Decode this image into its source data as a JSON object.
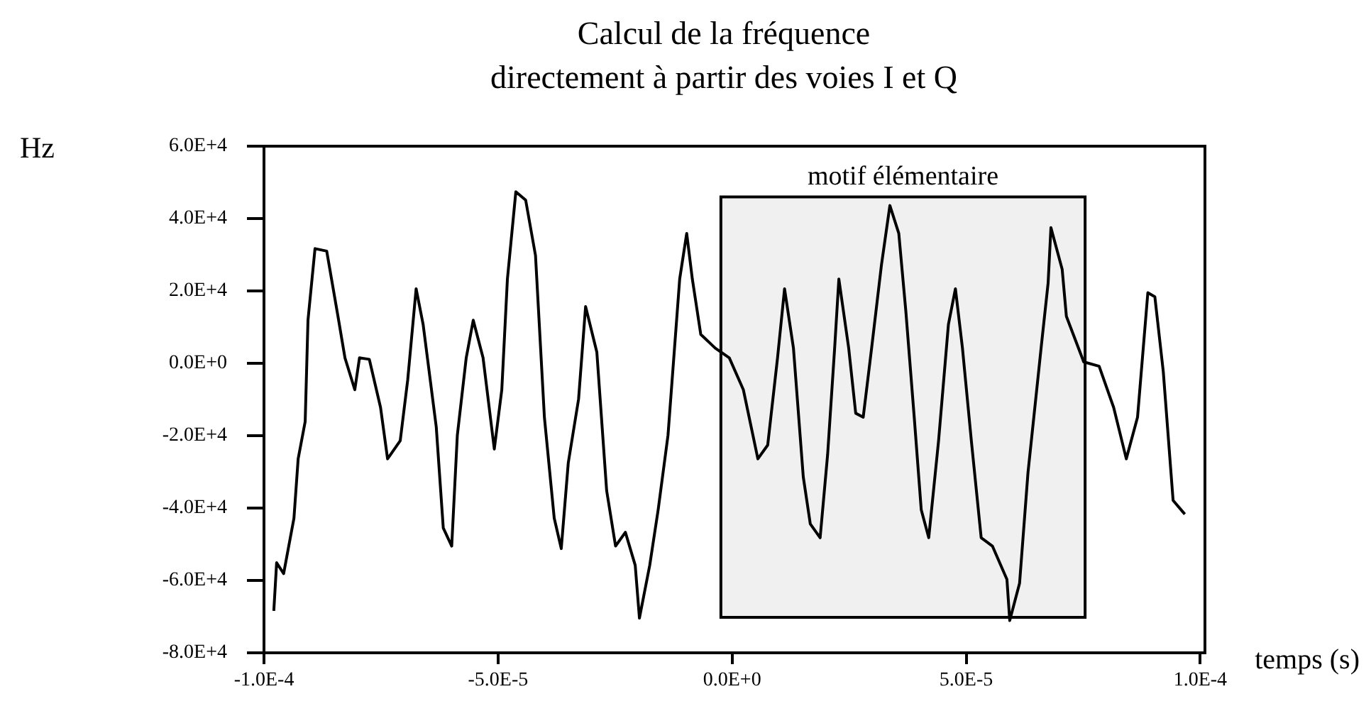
{
  "chart_data": {
    "type": "line",
    "title": "Calcul de la fréquence\ndirectement  à partir des voies I et Q",
    "xlabel": "temps (s)",
    "ylabel": "Hz",
    "xlim": [
      -0.0001,
      0.000101
    ],
    "ylim": [
      -80000,
      60000
    ],
    "xticks": [
      {
        "value": -0.0001,
        "label": "-1.0E-4"
      },
      {
        "value": -5e-05,
        "label": "-5.0E-5"
      },
      {
        "value": 0,
        "label": "0.0E+0"
      },
      {
        "value": 5e-05,
        "label": "5.0E-5"
      },
      {
        "value": 0.0001,
        "label": "1.0E-4"
      }
    ],
    "yticks": [
      {
        "value": 60000,
        "label": "6.0E+4"
      },
      {
        "value": 40000,
        "label": "4.0E+4"
      },
      {
        "value": 20000,
        "label": "2.0E+4"
      },
      {
        "value": 0,
        "label": "0.0E+0"
      },
      {
        "value": -20000,
        "label": "-2.0E+4"
      },
      {
        "value": -40000,
        "label": "-4.0E+4"
      },
      {
        "value": -60000,
        "label": "-6.0E+4"
      },
      {
        "value": -80000,
        "label": "-8.0E+4"
      }
    ],
    "grid": false,
    "legend": false,
    "marker": "none",
    "line_style": "solid",
    "bands": [
      {
        "axis": "x",
        "from": -2.4e-06,
        "to": 7.54e-05,
        "label": "motif élémentaire",
        "color": "#000000"
      }
    ],
    "series": [
      {
        "color": "#000000",
        "x": [
          -9.79e-05,
          -9.73e-05,
          -9.58e-05,
          -9.36e-05,
          -9.27e-05,
          -9.12e-05,
          -9.06e-05,
          -8.91e-05,
          -8.66e-05,
          -8.42e-05,
          -8.27e-05,
          -8.06e-05,
          -7.96e-05,
          -7.75e-05,
          -7.51e-05,
          -7.36e-05,
          -7.09e-05,
          -6.93e-05,
          -6.75e-05,
          -6.6e-05,
          -6.32e-05,
          -6.17e-05,
          -5.99e-05,
          -5.87e-05,
          -5.68e-05,
          -5.53e-05,
          -5.32e-05,
          -5.08e-05,
          -4.92e-05,
          -4.8e-05,
          -4.62e-05,
          -4.41e-05,
          -4.2e-05,
          -4.01e-05,
          -3.8e-05,
          -3.65e-05,
          -3.5e-05,
          -3.28e-05,
          -3.13e-05,
          -2.89e-05,
          -2.68e-05,
          -2.49e-05,
          -2.28e-05,
          -2.07e-05,
          -1.98e-05,
          -1.76e-05,
          -1.58e-05,
          -1.37e-05,
          -1.12e-05,
          -9.7e-06,
          -8.5e-06,
          -6.7e-06,
          -3.6e-06,
          -6e-07,
          2.4e-06,
          5.5e-06,
          7.6e-06,
          9.7e-06,
          1.12e-05,
          1.31e-05,
          1.52e-05,
          1.67e-05,
          1.88e-05,
          2.04e-05,
          2.19e-05,
          2.28e-05,
          2.49e-05,
          2.64e-05,
          2.8e-05,
          2.98e-05,
          3.19e-05,
          3.37e-05,
          3.56e-05,
          3.71e-05,
          3.89e-05,
          4.04e-05,
          4.2e-05,
          4.41e-05,
          4.62e-05,
          4.77e-05,
          4.92e-05,
          5.11e-05,
          5.32e-05,
          5.56e-05,
          5.87e-05,
          5.93e-05,
          6.14e-05,
          6.32e-05,
          6.6e-05,
          6.75e-05,
          6.81e-05,
          7.05e-05,
          7.14e-05,
          7.51e-05,
          7.84e-05,
          8.15e-05,
          8.42e-05,
          8.66e-05,
          8.88e-05,
          9.03e-05,
          9.21e-05,
          9.42e-05,
          9.67e-05
        ],
        "values": [
          -68400,
          -55100,
          -58100,
          -42800,
          -26400,
          -16100,
          11900,
          31700,
          31000,
          13000,
          1500,
          -7300,
          1500,
          1100,
          -12200,
          -26400,
          -21400,
          -4600,
          20600,
          10700,
          -17600,
          -45500,
          -50500,
          -19900,
          1500,
          11900,
          1500,
          -23700,
          -7300,
          23300,
          47400,
          45100,
          29800,
          -14900,
          -42800,
          -51200,
          -27500,
          -9900,
          15700,
          3100,
          -35200,
          -50500,
          -46700,
          -55800,
          -70400,
          -55800,
          -40500,
          -19900,
          23300,
          35900,
          23300,
          8000,
          4200,
          1500,
          -7300,
          -26400,
          -22600,
          1500,
          20600,
          4200,
          -31400,
          -44400,
          -48200,
          -25200,
          4200,
          23300,
          4200,
          -13800,
          -14900,
          4200,
          27200,
          43600,
          35900,
          14500,
          -14900,
          -40500,
          -48200,
          -21400,
          10700,
          20600,
          4200,
          -21400,
          -48200,
          -50500,
          -59700,
          -71100,
          -60800,
          -30200,
          4200,
          22200,
          37500,
          26000,
          13000,
          400,
          -800,
          -12200,
          -26400,
          -14900,
          19500,
          18400,
          -2300,
          -37900,
          -41700
        ]
      }
    ]
  }
}
